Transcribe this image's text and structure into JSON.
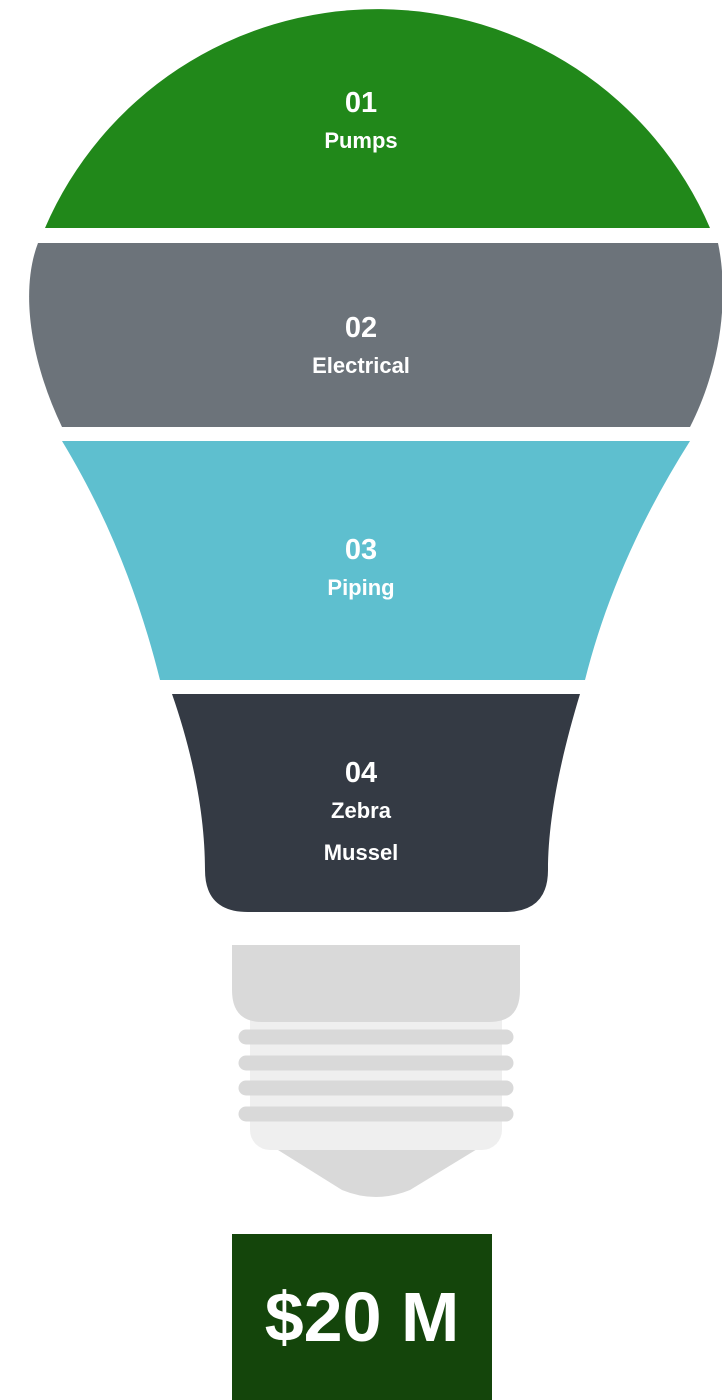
{
  "segments": [
    {
      "number": "01",
      "label": "Pumps"
    },
    {
      "number": "02",
      "label": "Electrical"
    },
    {
      "number": "03",
      "label": "Piping"
    },
    {
      "number": "04",
      "label": "Zebra Mussel"
    }
  ],
  "total": "$20 M"
}
